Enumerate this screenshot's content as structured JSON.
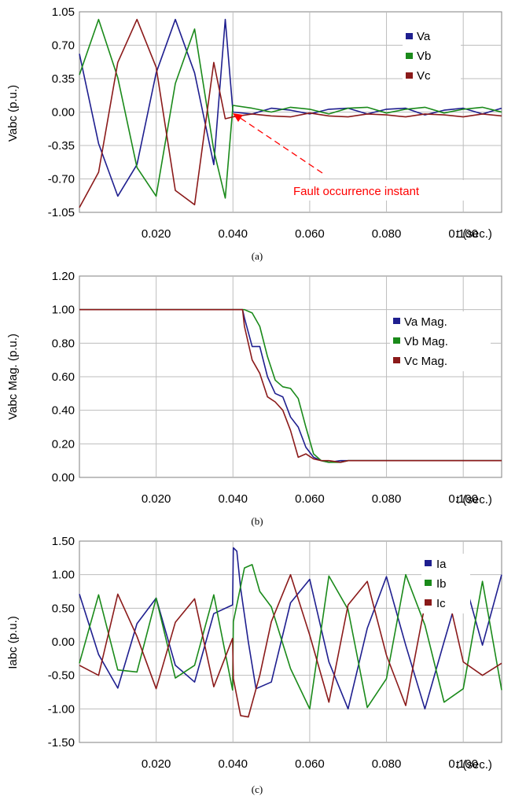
{
  "figure": {
    "panels": [
      {
        "id": "a",
        "caption": "(a)",
        "ylabel": "Vabc (p.u.)",
        "xlabel": "t (sec.)",
        "y_ticks": [
          "1.05",
          "0.70",
          "0.35",
          "0.00",
          "-0.35",
          "-0.70",
          "-1.05"
        ],
        "x_ticks": [
          "0.020",
          "0.040",
          "0.060",
          "0.080",
          "0.100"
        ],
        "legend": [
          "Va",
          "Vb",
          "Vc"
        ],
        "annotation": "Fault occurrence instant"
      },
      {
        "id": "b",
        "caption": "(b)",
        "ylabel": "Vabc Mag. (p.u.)",
        "xlabel": "t (sec.)",
        "y_ticks": [
          "1.20",
          "1.00",
          "0.80",
          "0.60",
          "0.40",
          "0.20",
          "0.00"
        ],
        "x_ticks": [
          "0.020",
          "0.040",
          "0.060",
          "0.080",
          "0.100"
        ],
        "legend": [
          "Va Mag.",
          "Vb Mag.",
          "Vc Mag."
        ]
      },
      {
        "id": "c",
        "caption": "(c)",
        "ylabel": "Iabc (p.u.)",
        "xlabel": "t (sec.)",
        "y_ticks": [
          "1.50",
          "1.00",
          "0.50",
          "0.00",
          "-0.50",
          "-1.00",
          "-1.50"
        ],
        "x_ticks": [
          "0.020",
          "0.040",
          "0.060",
          "0.080",
          "0.100"
        ],
        "legend": [
          "Ia",
          "Ib",
          "Ic"
        ]
      }
    ]
  },
  "colors": {
    "phase_a": "#1f1f8f",
    "phase_b": "#1a8a1a",
    "phase_c": "#8b1a1a",
    "annotation": "#ff0000",
    "grid": "#bdbdbd"
  },
  "chart_data": [
    {
      "type": "line",
      "title": "",
      "xlabel": "t (sec.)",
      "ylabel": "Vabc (p.u.)",
      "xlim": [
        0,
        0.11
      ],
      "ylim": [
        -1.05,
        1.05
      ],
      "grid": true,
      "legend_position": "top-right",
      "fault_time": 0.04,
      "series": [
        {
          "name": "Va",
          "x": [
            0,
            0.005,
            0.01,
            0.015,
            0.02,
            0.025,
            0.03,
            0.035,
            0.038,
            0.04,
            0.045,
            0.05,
            0.055,
            0.06,
            0.065,
            0.07,
            0.075,
            0.08,
            0.085,
            0.09,
            0.095,
            0.1,
            0.105,
            0.11
          ],
          "values": [
            0.61,
            -0.33,
            -0.88,
            -0.55,
            0.41,
            0.97,
            0.41,
            -0.55,
            0.97,
            0.0,
            -0.02,
            0.04,
            0.02,
            -0.02,
            0.03,
            0.04,
            -0.02,
            0.03,
            0.04,
            -0.03,
            0.02,
            0.04,
            -0.02,
            0.04
          ]
        },
        {
          "name": "Vb",
          "x": [
            0,
            0.005,
            0.01,
            0.015,
            0.02,
            0.025,
            0.03,
            0.035,
            0.038,
            0.04,
            0.045,
            0.05,
            0.055,
            0.06,
            0.065,
            0.07,
            0.075,
            0.08,
            0.085,
            0.09,
            0.095,
            0.1,
            0.105,
            0.11
          ],
          "values": [
            0.39,
            0.97,
            0.36,
            -0.58,
            -0.88,
            0.3,
            0.87,
            -0.4,
            -0.9,
            0.07,
            0.04,
            0.0,
            0.05,
            0.03,
            -0.02,
            0.04,
            0.05,
            -0.01,
            0.03,
            0.05,
            -0.01,
            0.03,
            0.05,
            0.0
          ]
        },
        {
          "name": "Vc",
          "x": [
            0,
            0.005,
            0.01,
            0.015,
            0.02,
            0.025,
            0.03,
            0.035,
            0.038,
            0.04,
            0.045,
            0.05,
            0.055,
            0.06,
            0.065,
            0.07,
            0.075,
            0.08,
            0.085,
            0.09,
            0.095,
            0.1,
            0.105,
            0.11
          ],
          "values": [
            -1.0,
            -0.63,
            0.52,
            0.97,
            0.47,
            -0.82,
            -0.97,
            0.52,
            -0.07,
            -0.05,
            -0.02,
            -0.04,
            -0.05,
            -0.01,
            -0.04,
            -0.05,
            -0.02,
            -0.03,
            -0.05,
            -0.02,
            -0.03,
            -0.05,
            -0.02,
            -0.04
          ]
        }
      ],
      "annotations": [
        {
          "text": "Fault occurrence instant",
          "x": 0.04,
          "y": -0.03
        }
      ]
    },
    {
      "type": "line",
      "title": "",
      "xlabel": "t (sec.)",
      "ylabel": "Vabc Mag. (p.u.)",
      "xlim": [
        0,
        0.11
      ],
      "ylim": [
        0,
        1.2
      ],
      "grid": true,
      "legend_position": "right",
      "series": [
        {
          "name": "Va Mag.",
          "x": [
            0,
            0.0425,
            0.043,
            0.045,
            0.047,
            0.049,
            0.051,
            0.053,
            0.055,
            0.057,
            0.059,
            0.061,
            0.063,
            0.065,
            0.068,
            0.07,
            0.11
          ],
          "values": [
            1.0,
            1.0,
            0.95,
            0.78,
            0.78,
            0.6,
            0.5,
            0.48,
            0.36,
            0.3,
            0.18,
            0.12,
            0.1,
            0.09,
            0.1,
            0.1,
            0.1
          ]
        },
        {
          "name": "Vb Mag.",
          "x": [
            0,
            0.0425,
            0.043,
            0.045,
            0.047,
            0.049,
            0.051,
            0.053,
            0.055,
            0.057,
            0.059,
            0.061,
            0.063,
            0.065,
            0.068,
            0.07,
            0.11
          ],
          "values": [
            1.0,
            1.0,
            1.0,
            0.98,
            0.9,
            0.72,
            0.58,
            0.54,
            0.53,
            0.47,
            0.3,
            0.14,
            0.1,
            0.09,
            0.09,
            0.1,
            0.1
          ]
        },
        {
          "name": "Vc Mag.",
          "x": [
            0,
            0.0425,
            0.043,
            0.045,
            0.047,
            0.049,
            0.051,
            0.053,
            0.055,
            0.057,
            0.059,
            0.061,
            0.063,
            0.065,
            0.068,
            0.07,
            0.11
          ],
          "values": [
            1.0,
            1.0,
            0.9,
            0.7,
            0.62,
            0.48,
            0.45,
            0.4,
            0.28,
            0.12,
            0.14,
            0.11,
            0.1,
            0.1,
            0.09,
            0.1,
            0.1
          ]
        }
      ]
    },
    {
      "type": "line",
      "title": "",
      "xlabel": "t (sec.)",
      "ylabel": "Iabc (p.u.)",
      "xlim": [
        0,
        0.11
      ],
      "ylim": [
        -1.5,
        1.5
      ],
      "grid": true,
      "legend_position": "top-right",
      "series": [
        {
          "name": "Ia",
          "x": [
            0,
            0.005,
            0.01,
            0.015,
            0.02,
            0.025,
            0.03,
            0.035,
            0.0399,
            0.0401,
            0.041,
            0.042,
            0.044,
            0.046,
            0.05,
            0.055,
            0.06,
            0.065,
            0.07,
            0.075,
            0.08,
            0.085,
            0.09,
            0.095,
            0.1,
            0.105,
            0.11
          ],
          "values": [
            0.71,
            -0.19,
            -0.69,
            0.27,
            0.65,
            -0.35,
            -0.6,
            0.42,
            0.55,
            1.4,
            1.35,
            0.8,
            0.0,
            -0.7,
            -0.6,
            0.58,
            0.93,
            -0.3,
            -1.0,
            0.2,
            0.97,
            -0.05,
            -1.0,
            0.0,
            0.98,
            -0.05,
            1.0
          ]
        },
        {
          "name": "Ib",
          "x": [
            0,
            0.005,
            0.01,
            0.015,
            0.02,
            0.025,
            0.03,
            0.035,
            0.0399,
            0.0401,
            0.043,
            0.045,
            0.047,
            0.05,
            0.055,
            0.06,
            0.065,
            0.07,
            0.075,
            0.08,
            0.085,
            0.09,
            0.095,
            0.1,
            0.105,
            0.11
          ],
          "values": [
            -0.32,
            0.7,
            -0.42,
            -0.45,
            0.65,
            -0.54,
            -0.35,
            0.7,
            -0.72,
            0.3,
            1.1,
            1.15,
            0.75,
            0.52,
            -0.4,
            -1.0,
            0.98,
            0.48,
            -0.98,
            -0.55,
            1.0,
            0.25,
            -0.9,
            -0.7,
            0.9,
            -0.72
          ]
        },
        {
          "name": "Ic",
          "x": [
            0,
            0.005,
            0.01,
            0.015,
            0.02,
            0.025,
            0.03,
            0.035,
            0.0399,
            0.0401,
            0.042,
            0.044,
            0.047,
            0.05,
            0.055,
            0.06,
            0.065,
            0.07,
            0.075,
            0.08,
            0.085,
            0.09,
            0.095,
            0.1,
            0.105,
            0.11
          ],
          "values": [
            -0.35,
            -0.5,
            0.71,
            0.08,
            -0.7,
            0.29,
            0.64,
            -0.67,
            0.05,
            -0.55,
            -1.1,
            -1.12,
            -0.5,
            0.3,
            1.0,
            0.1,
            -0.9,
            0.55,
            0.9,
            -0.2,
            -0.95,
            0.55,
            0.95,
            -0.3,
            -0.5,
            -0.32
          ]
        }
      ]
    }
  ]
}
